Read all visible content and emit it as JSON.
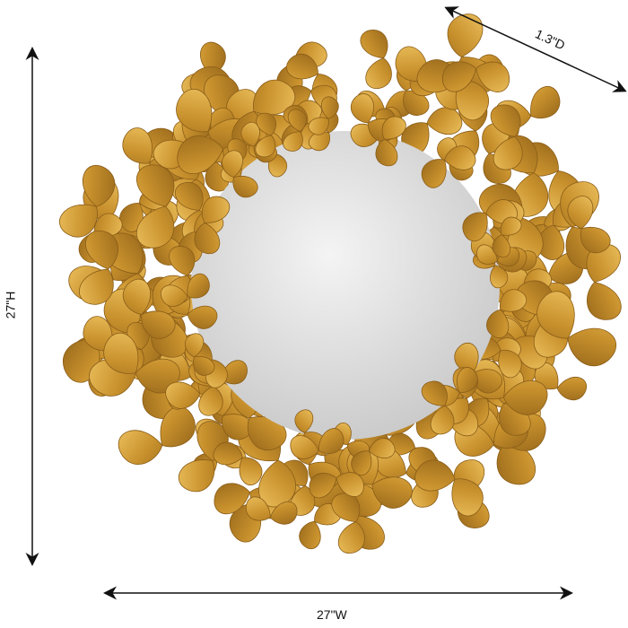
{
  "product": {
    "description_visible": "",
    "frame_color": "#c9962f",
    "mirror_color": "#dcdcdc"
  },
  "dimensions": {
    "height": "27\"H",
    "width": "27\"W",
    "depth": "1.3\"D"
  }
}
